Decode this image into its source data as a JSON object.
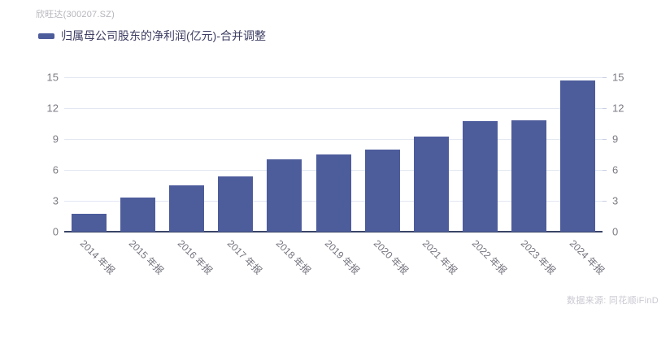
{
  "header": {
    "title": "欣旺达(300207.SZ)"
  },
  "legend": {
    "label": "归属母公司股东的净利润(亿元)-合并调整",
    "swatch_color": "#4d5c9b"
  },
  "chart_data": {
    "type": "bar",
    "title": "归属母公司股东的净利润(亿元)-合并调整",
    "categories": [
      "2014 年报",
      "2015 年报",
      "2016 年报",
      "2017 年报",
      "2018 年报",
      "2019 年报",
      "2020 年报",
      "2021 年报",
      "2022 年报",
      "2023 年报",
      "2024 年报"
    ],
    "values": [
      1.7,
      3.3,
      4.5,
      5.4,
      7.0,
      7.5,
      8.0,
      9.2,
      10.7,
      10.8,
      14.7
    ],
    "xlabel": "",
    "ylabel": "",
    "ylim": [
      0,
      15
    ],
    "yticks": [
      0,
      3,
      6,
      9,
      12,
      15
    ],
    "grid": true,
    "dual_y_axis": true,
    "legend_position": "top-left",
    "bar_color": "#4d5c9b"
  },
  "footer": {
    "source": "数据来源: 同花顺iFinD"
  },
  "colors": {
    "bar": "#4d5c9b",
    "axis_line": "#3a4468",
    "gridline": "#e3e7f1",
    "tick_mark": "#c9cfe4",
    "y_label": "#7b7b84",
    "x_label": "#73737e",
    "title": "#b5b5bd",
    "legend_text": "#3d3d63",
    "source_text": "#c9c9d2"
  }
}
